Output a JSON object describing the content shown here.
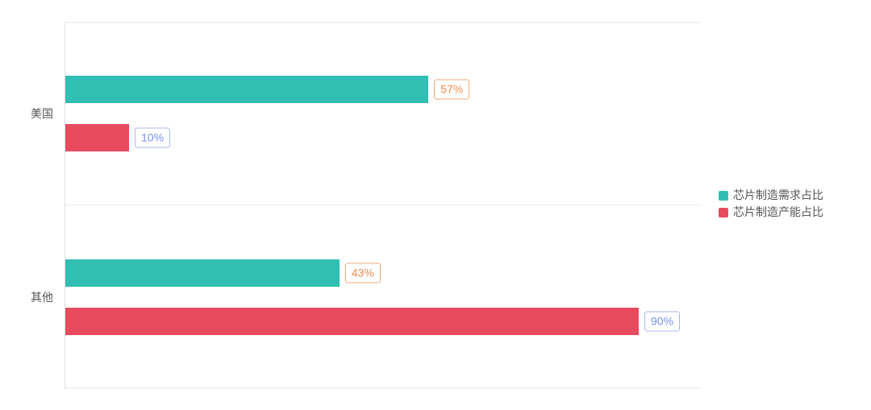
{
  "chart_data": {
    "type": "bar",
    "orientation": "horizontal",
    "title": "",
    "xlabel": "",
    "ylabel": "",
    "categories": [
      "美国",
      "其他"
    ],
    "series": [
      {
        "name": "芯片制造需求占比",
        "values": [
          57,
          43
        ],
        "color": "#30bfb2",
        "label_text_color": "#ee8a4f",
        "label_border_color": "#f2a878"
      },
      {
        "name": "芯片制造产能占比",
        "values": [
          10,
          90
        ],
        "color": "#e84b5e",
        "label_text_color": "#7590e4",
        "label_border_color": "#a8baee"
      }
    ],
    "value_format": "{value}%",
    "value_labels": [
      [
        "57%",
        "43%"
      ],
      [
        "10%",
        "90%"
      ]
    ],
    "xlim": [
      0,
      100
    ],
    "grid": true,
    "legend_position": "right",
    "axis_text_color": "#555555",
    "grid_line_color": "#eaeaea"
  }
}
